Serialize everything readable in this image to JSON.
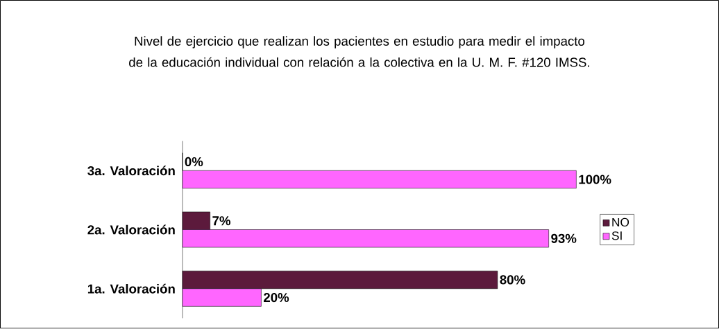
{
  "chart_data": {
    "type": "bar",
    "orientation": "horizontal",
    "title": "Nivel de ejercicio que realizan los pacientes en estudio para medir el impacto de la educación individual con relación a la colectiva en la U. M. F. #120 IMSS.",
    "categories": [
      "3a. Valoración",
      "2a. Valoración",
      "1a. Valoración"
    ],
    "series": [
      {
        "name": "NO",
        "color": "#5c1a3c",
        "values": [
          0,
          7,
          80
        ],
        "value_labels": [
          "0%",
          "7%",
          "80%"
        ]
      },
      {
        "name": "SI",
        "color": "#ff66ff",
        "values": [
          100,
          93,
          20
        ],
        "value_labels": [
          "100%",
          "93%",
          "20%"
        ]
      }
    ],
    "legend": "right"
  }
}
